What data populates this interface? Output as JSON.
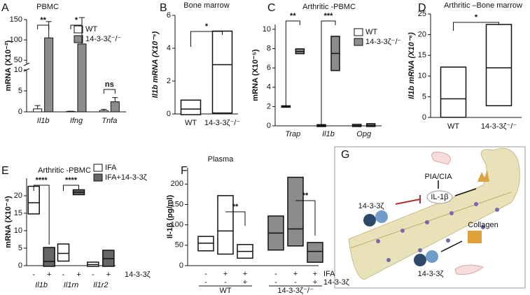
{
  "chart_data": [
    {
      "panel": "A",
      "type": "bar",
      "title": "PBMC",
      "ylabel": "mRNA (X10⁻²)",
      "categories": [
        "Il1b",
        "Ifng",
        "Tnfa"
      ],
      "series": [
        {
          "name": "WT",
          "color": "#ffffff",
          "values": [
            0.7,
            0.1,
            0.3
          ],
          "errors": [
            0.8,
            0.05,
            0.3
          ]
        },
        {
          "name": "14-3-3ζ⁻/⁻",
          "color": "#8c8c8c",
          "values": [
            105,
            90,
            2.4
          ],
          "errors": [
            40,
            65,
            1.0
          ]
        }
      ],
      "ylim": [
        0,
        150
      ],
      "axis_break": [
        10,
        40
      ],
      "yticks": [
        0,
        5,
        10,
        50,
        100,
        150
      ],
      "annotations": [
        "**",
        "*",
        "ns"
      ]
    },
    {
      "panel": "B",
      "type": "box",
      "title": "Bone marrow",
      "ylabel": "Il1b mRNA (X10⁻⁵)",
      "categories": [
        "WT",
        "14-3-3ζ⁻/⁻"
      ],
      "series": [
        {
          "color": "#ffffff",
          "low": [
            0,
            0.1
          ],
          "median": [
            0.3,
            3.0
          ],
          "high": [
            0.8,
            5.0
          ]
        }
      ],
      "ylim": [
        0,
        6
      ],
      "yticks": [
        0,
        2,
        4,
        6
      ],
      "annotations": [
        "*"
      ]
    },
    {
      "panel": "C",
      "type": "box",
      "title": "Arthritic -PBMC",
      "ylabel": "mRNA (X10⁻⁵)",
      "categories": [
        "Trap",
        "Il1b",
        "Opg"
      ],
      "series": [
        {
          "name": "WT",
          "color": "#ffffff",
          "low": [
            2.0,
            0,
            0
          ],
          "median": [
            2.0,
            0.02,
            0.03
          ],
          "high": [
            2.0,
            0.05,
            0.08
          ]
        },
        {
          "name": "14-3-3ζ⁻/⁻",
          "color": "#8c8c8c",
          "low": [
            7.55,
            5.8,
            0
          ],
          "median": [
            7.7,
            7.5,
            0.05
          ],
          "high": [
            7.9,
            9.2,
            0.15
          ]
        }
      ],
      "ylim": [
        0,
        10.5
      ],
      "yticks": [
        0,
        2,
        4,
        6,
        8,
        10
      ],
      "annotations": [
        "**",
        "***"
      ]
    },
    {
      "panel": "D",
      "type": "box",
      "title": "Arthritic –Bone marrow",
      "ylabel": "Il1b mRNA (X10⁻⁶)",
      "categories": [
        "WT",
        "14-3-3ζ⁻/⁻"
      ],
      "series": [
        {
          "color": "#ffffff",
          "low": [
            0.2,
            3.0
          ],
          "median": [
            4.5,
            12.0
          ],
          "high": [
            12.0,
            22.3
          ]
        }
      ],
      "ylim": [
        0,
        25
      ],
      "yticks": [
        0,
        5,
        10,
        15,
        20,
        25
      ],
      "annotations": [
        "*"
      ]
    },
    {
      "panel": "E",
      "type": "box",
      "title": "Arthritic -PBMC",
      "ylabel": "mRNA (X10⁻⁴)",
      "categories": [
        "Il1b",
        "Il1rn",
        "Il1r2"
      ],
      "x_rows": [
        {
          "name": "14-3-3ζ",
          "values": [
            "-",
            "+",
            "-",
            "+",
            "-",
            "+"
          ]
        }
      ],
      "series": [
        {
          "name": "IFA",
          "color": "#ffffff",
          "low": [
            15,
            1.5,
            0
          ],
          "median": [
            18,
            3.5,
            0.3
          ],
          "high": [
            22.5,
            6,
            0.8
          ]
        },
        {
          "name": "IFA+14-3-3ζ",
          "color": "#666666",
          "low": [
            0,
            20.5,
            0
          ],
          "median": [
            1.2,
            21,
            2
          ],
          "high": [
            5,
            21.5,
            4.2
          ]
        }
      ],
      "ylim": [
        0,
        25
      ],
      "yticks": [
        0,
        5,
        10,
        15,
        20
      ],
      "annotations": [
        "****",
        "****"
      ]
    },
    {
      "panel": "F",
      "type": "box",
      "title": "Plasma",
      "ylabel": "Il-1β (pg/ml)",
      "x_rows": [
        {
          "name": "IFA",
          "values": [
            "-",
            "+",
            "+",
            "-",
            "+",
            "+"
          ]
        },
        {
          "name": "14-3-3ζ",
          "values": [
            "-",
            "-",
            "+",
            "-",
            "-",
            "+"
          ]
        }
      ],
      "series": [
        {
          "name": "WT",
          "color": "#ffffff",
          "low": [
            38,
            30,
            20
          ],
          "median": [
            55,
            85,
            35
          ],
          "high": [
            70,
            170,
            50
          ]
        },
        {
          "name": "14-3-3ζ⁻/⁻",
          "color": "#8c8c8c",
          "low": [
            40,
            50,
            10
          ],
          "median": [
            80,
            90,
            35
          ],
          "high": [
            120,
            215,
            55
          ]
        }
      ],
      "ylim": [
        0,
        240
      ],
      "yticks": [
        0,
        50,
        100,
        150,
        200
      ],
      "annotations": [
        "**",
        "**"
      ]
    }
  ],
  "diagram": {
    "panel": "G",
    "labels": [
      "PIA/CIA",
      "IL-1β",
      "14-3-3ζ",
      "Collagen",
      "14-3-3ζ"
    ]
  }
}
